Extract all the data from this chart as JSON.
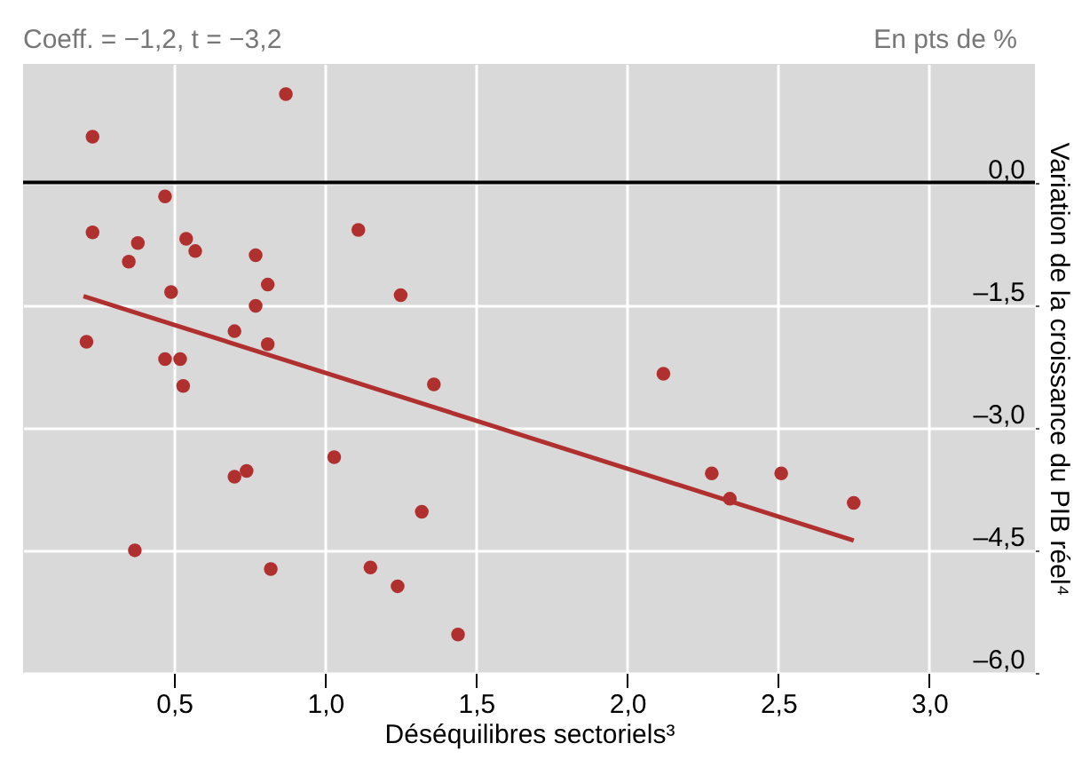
{
  "chart_data": {
    "type": "scatter",
    "subtitle": "Coeff. = −1,2, t = −3,2",
    "annotations": [
      "En pts de %"
    ],
    "xlabel": "Déséquilibres sectoriels³",
    "ylabel": "Variation de la croissance du PIB réel⁴",
    "xlim": [
      0,
      3.35
    ],
    "ylim": [
      -6.0,
      1.45
    ],
    "xticks": [
      {
        "value": 0.5,
        "label": "0,5"
      },
      {
        "value": 1.0,
        "label": "1,0"
      },
      {
        "value": 1.5,
        "label": "1,5"
      },
      {
        "value": 2.0,
        "label": "2,0"
      },
      {
        "value": 2.5,
        "label": "2,5"
      },
      {
        "value": 3.0,
        "label": "3,0"
      }
    ],
    "yticks": [
      {
        "value": 0,
        "label": "0,0"
      },
      {
        "value": -1.5,
        "label": "–1,5"
      },
      {
        "value": -3.0,
        "label": "–3,0"
      },
      {
        "value": -4.5,
        "label": "–4,5"
      },
      {
        "value": -6.0,
        "label": "–6,0"
      }
    ],
    "grid": true,
    "ref_lines": [
      {
        "axis": "y",
        "value": 0,
        "color": "#000000"
      }
    ],
    "series": [
      {
        "marker": "circle",
        "color": "#b03030",
        "x": [
          0.23,
          0.87,
          0.47,
          0.23,
          0.38,
          0.54,
          0.57,
          0.35,
          0.77,
          1.11,
          0.49,
          0.81,
          0.77,
          1.25,
          0.21,
          0.7,
          0.81,
          0.47,
          0.52,
          0.53,
          1.36,
          1.03,
          0.74,
          0.7,
          1.32,
          0.37,
          0.82,
          1.15,
          1.24,
          1.44,
          2.12,
          2.28,
          2.51,
          2.34,
          2.75
        ],
        "values": [
          0.56,
          1.08,
          -0.17,
          -0.61,
          -0.74,
          -0.69,
          -0.84,
          -0.97,
          -0.89,
          -0.58,
          -1.34,
          -1.25,
          -1.51,
          -1.38,
          -1.95,
          -1.82,
          -1.98,
          -2.16,
          -2.16,
          -2.49,
          -2.47,
          -3.36,
          -3.53,
          -3.6,
          -4.03,
          -4.5,
          -4.73,
          -4.71,
          -4.94,
          -5.53,
          -2.34,
          -3.56,
          -3.56,
          -3.87,
          -3.92
        ]
      },
      {
        "type": "line",
        "marker": "none",
        "color": "#b03030",
        "x": [
          0.2,
          2.75
        ],
        "values": [
          -1.39,
          -4.38
        ]
      }
    ]
  }
}
